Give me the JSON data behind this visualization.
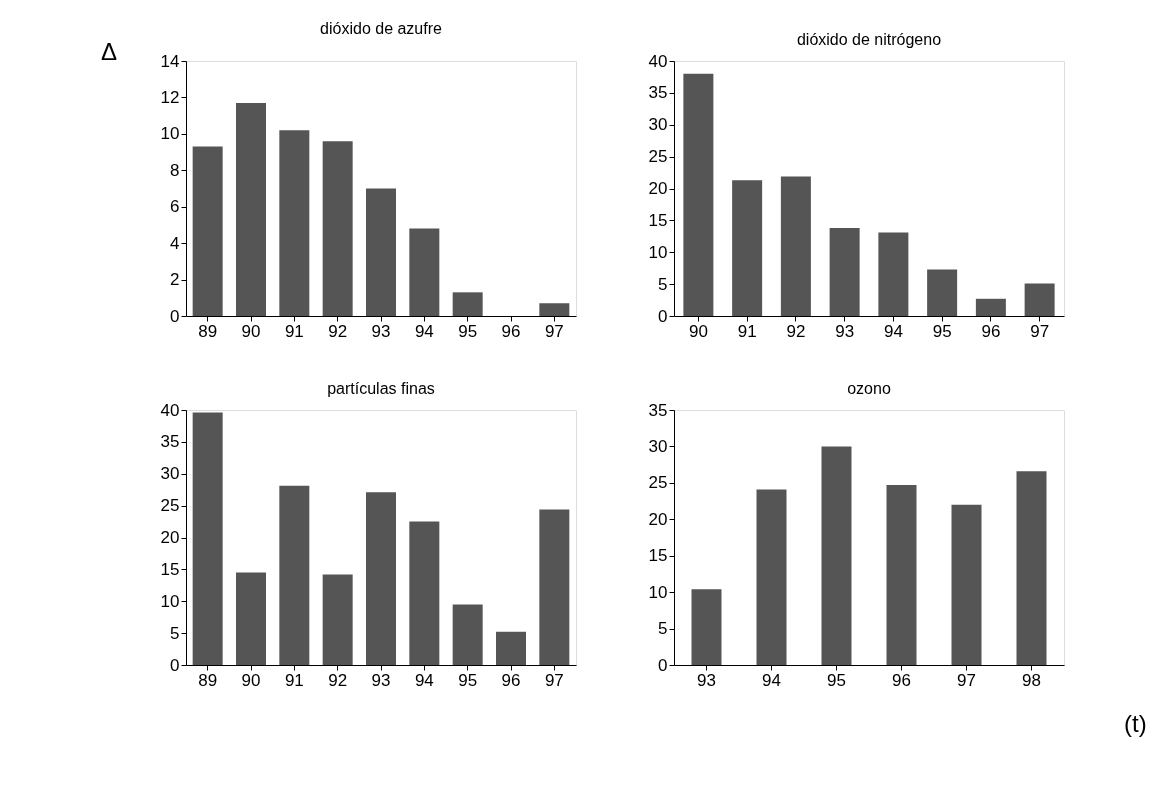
{
  "chart_data": [
    {
      "type": "bar",
      "title": "dióxido de azufre",
      "categories": [
        "89",
        "90",
        "91",
        "92",
        "93",
        "94",
        "95",
        "96",
        "97"
      ],
      "values": [
        9.3,
        11.7,
        10.2,
        9.6,
        7.0,
        4.8,
        1.3,
        0,
        0.7
      ],
      "color": "#555555",
      "ylim": [
        0,
        14
      ],
      "yticks": [
        0,
        2,
        4,
        6,
        8,
        10,
        12,
        14
      ],
      "grid": false,
      "annotations": [
        "Δ"
      ]
    },
    {
      "type": "bar",
      "title": "dióxido de nitrógeno",
      "categories": [
        "90",
        "91",
        "92",
        "93",
        "94",
        "95",
        "96",
        "97"
      ],
      "values": [
        38,
        21.3,
        21.9,
        13.8,
        13.1,
        7.3,
        2.7,
        5.1
      ],
      "color": "#555555",
      "ylim": [
        0,
        40
      ],
      "yticks": [
        0,
        5,
        10,
        15,
        20,
        25,
        30,
        35,
        40
      ],
      "grid": false
    },
    {
      "type": "bar",
      "title": "partículas finas",
      "categories": [
        "89",
        "90",
        "91",
        "92",
        "93",
        "94",
        "95",
        "96",
        "97"
      ],
      "values": [
        39.6,
        14.5,
        28.1,
        14.2,
        27.1,
        22.5,
        9.5,
        5.2,
        24.4
      ],
      "color": "#555555",
      "ylim": [
        0,
        40
      ],
      "yticks": [
        0,
        5,
        10,
        15,
        20,
        25,
        30,
        35,
        40
      ],
      "grid": false
    },
    {
      "type": "bar",
      "title": "ozono",
      "categories": [
        "93",
        "94",
        "95",
        "96",
        "97",
        "98"
      ],
      "values": [
        10.4,
        24.1,
        30.0,
        24.7,
        22.0,
        26.6
      ],
      "color": "#555555",
      "ylim": [
        0,
        35
      ],
      "yticks": [
        0,
        5,
        10,
        15,
        20,
        25,
        30,
        35
      ],
      "grid": false,
      "annotations": [
        "(t)"
      ]
    }
  ]
}
